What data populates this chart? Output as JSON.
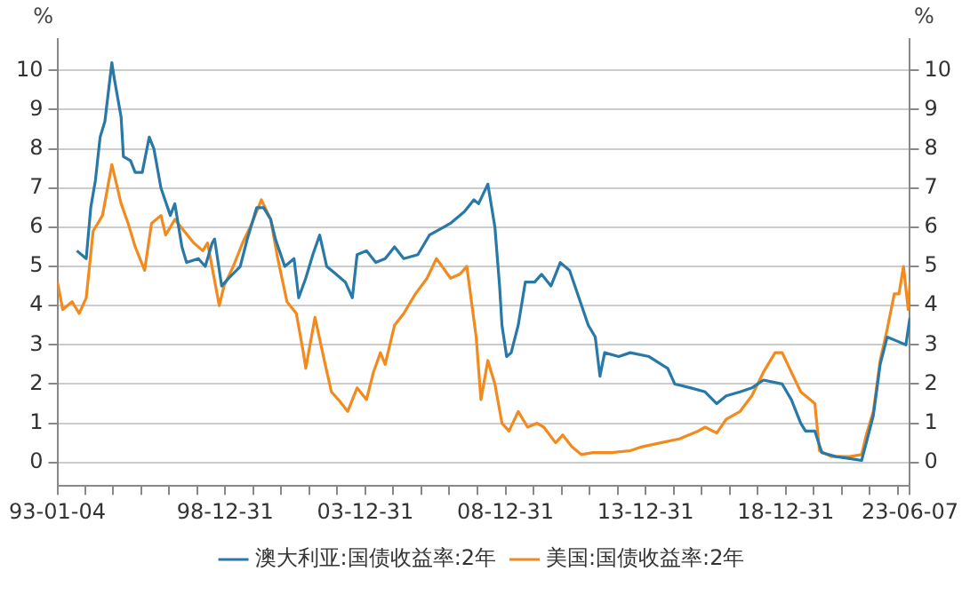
{
  "chart_data": {
    "type": "line",
    "ylabel": "%",
    "y2label": "%",
    "xlim": [
      "1993-01-04",
      "2023-06-07"
    ],
    "xticks": [
      {
        "value": "1993-01-04",
        "label": "93-01-04"
      },
      {
        "value": "1993-12-31",
        "label": null
      },
      {
        "value": "1994-12-31",
        "label": null
      },
      {
        "value": "1995-12-31",
        "label": null
      },
      {
        "value": "1996-12-31",
        "label": null
      },
      {
        "value": "1997-12-31",
        "label": null
      },
      {
        "value": "1998-12-31",
        "label": "98-12-31"
      },
      {
        "value": "1999-12-31",
        "label": null
      },
      {
        "value": "2000-12-31",
        "label": null
      },
      {
        "value": "2001-12-31",
        "label": null
      },
      {
        "value": "2002-12-31",
        "label": null
      },
      {
        "value": "2003-12-31",
        "label": "03-12-31"
      },
      {
        "value": "2004-12-31",
        "label": null
      },
      {
        "value": "2005-12-31",
        "label": null
      },
      {
        "value": "2006-12-31",
        "label": null
      },
      {
        "value": "2007-12-31",
        "label": null
      },
      {
        "value": "2008-12-31",
        "label": "08-12-31"
      },
      {
        "value": "2009-12-31",
        "label": null
      },
      {
        "value": "2010-12-31",
        "label": null
      },
      {
        "value": "2011-12-31",
        "label": null
      },
      {
        "value": "2012-12-31",
        "label": null
      },
      {
        "value": "2013-12-31",
        "label": "13-12-31"
      },
      {
        "value": "2014-12-31",
        "label": null
      },
      {
        "value": "2015-12-31",
        "label": null
      },
      {
        "value": "2016-12-31",
        "label": null
      },
      {
        "value": "2017-12-31",
        "label": null
      },
      {
        "value": "2018-12-31",
        "label": "18-12-31"
      },
      {
        "value": "2019-12-31",
        "label": null
      },
      {
        "value": "2020-12-31",
        "label": null
      },
      {
        "value": "2021-12-31",
        "label": null
      },
      {
        "value": "2022-12-31",
        "label": null
      },
      {
        "value": "2023-06-07",
        "label": "23-06-07"
      }
    ],
    "ylim": [
      -0.6,
      10.8
    ],
    "yticks": [
      0,
      1,
      2,
      3,
      4,
      5,
      6,
      7,
      8,
      9,
      10
    ],
    "y2lim": [
      -0.6,
      10.8
    ],
    "y2ticks": [
      0,
      1,
      2,
      3,
      4,
      5,
      6,
      7,
      8,
      9,
      10
    ],
    "grid": "y",
    "legend": "bottom",
    "line_style": "solid",
    "marker": "none",
    "series": [
      {
        "name": "澳大利亚:国债收益率:2年",
        "color": "#2878a8",
        "x": [
          "1993-09",
          "1994-01",
          "1994-03",
          "1994-05",
          "1994-07",
          "1994-09",
          "1994-12",
          "1995-01",
          "1995-04",
          "1995-05",
          "1995-08",
          "1995-10",
          "1996-01",
          "1996-04",
          "1996-06",
          "1996-09",
          "1997-01",
          "1997-03",
          "1997-06",
          "1997-08",
          "1998-01",
          "1998-04",
          "1998-07",
          "1998-08",
          "1998-11",
          "1999-02",
          "1999-07",
          "1999-10",
          "2000-02",
          "2000-05",
          "2000-08",
          "2000-10",
          "2001-02",
          "2001-06",
          "2001-08",
          "2001-11",
          "2002-02",
          "2002-05",
          "2002-08",
          "2002-12",
          "2003-04",
          "2003-07",
          "2003-09",
          "2004-01",
          "2004-05",
          "2004-09",
          "2005-01",
          "2005-05",
          "2005-11",
          "2006-04",
          "2007-01",
          "2007-07",
          "2007-11",
          "2008-01",
          "2008-05",
          "2008-08",
          "2008-10",
          "2008-11",
          "2009-01",
          "2009-03",
          "2009-06",
          "2009-09",
          "2010-01",
          "2010-04",
          "2010-08",
          "2010-12",
          "2011-04",
          "2011-08",
          "2011-12",
          "2012-03",
          "2012-05",
          "2012-07",
          "2013-01",
          "2013-06",
          "2014-02",
          "2014-10",
          "2015-01",
          "2015-08",
          "2016-02",
          "2016-07",
          "2016-11",
          "2017-05",
          "2017-10",
          "2018-03",
          "2018-11",
          "2019-03",
          "2019-07",
          "2019-09",
          "2020-01",
          "2020-04",
          "2020-10",
          "2021-04",
          "2021-09",
          "2021-11",
          "2022-02",
          "2022-05",
          "2022-08",
          "2022-12",
          "2023-04",
          "2023-06-07"
        ],
        "values": [
          5.4,
          5.2,
          6.5,
          7.2,
          8.3,
          8.7,
          10.2,
          9.8,
          8.8,
          7.8,
          7.7,
          7.4,
          7.4,
          8.3,
          8.0,
          7.0,
          6.3,
          6.6,
          5.5,
          5.1,
          5.2,
          5.0,
          5.6,
          5.7,
          4.5,
          4.7,
          5.0,
          5.7,
          6.5,
          6.5,
          6.2,
          5.7,
          5.0,
          5.2,
          4.2,
          4.7,
          5.3,
          5.8,
          5.0,
          4.8,
          4.6,
          4.2,
          5.3,
          5.4,
          5.1,
          5.2,
          5.5,
          5.2,
          5.3,
          5.8,
          6.1,
          6.4,
          6.7,
          6.6,
          7.1,
          6.0,
          4.5,
          3.5,
          2.7,
          2.8,
          3.5,
          4.6,
          4.6,
          4.8,
          4.5,
          5.1,
          4.9,
          4.2,
          3.5,
          3.2,
          2.2,
          2.8,
          2.7,
          2.8,
          2.7,
          2.4,
          2.0,
          1.9,
          1.8,
          1.5,
          1.7,
          1.8,
          1.9,
          2.1,
          2.0,
          1.6,
          1.0,
          0.8,
          0.8,
          0.25,
          0.15,
          0.1,
          0.05,
          0.5,
          1.2,
          2.5,
          3.2,
          3.1,
          3.0,
          3.7
        ]
      },
      {
        "name": "美国:国债收益率:2年",
        "color": "#f28a1e",
        "x": [
          "1993-01-04",
          "1993-03",
          "1993-07",
          "1993-10",
          "1994-01",
          "1994-04",
          "1994-08",
          "1994-12",
          "1995-04",
          "1995-07",
          "1995-10",
          "1996-02",
          "1996-05",
          "1996-09",
          "1996-11",
          "1997-03",
          "1997-07",
          "1997-11",
          "1998-03",
          "1998-05",
          "1998-10",
          "1998-12",
          "1999-04",
          "1999-08",
          "1999-12",
          "2000-04",
          "2000-08",
          "2000-11",
          "2001-03",
          "2001-07",
          "2001-10",
          "2001-11",
          "2002-03",
          "2002-07",
          "2002-10",
          "2003-01",
          "2003-05",
          "2003-09",
          "2004-01",
          "2004-04",
          "2004-07",
          "2004-09",
          "2005-01",
          "2005-05",
          "2005-10",
          "2006-03",
          "2006-07",
          "2007-01",
          "2007-05",
          "2007-08",
          "2007-12",
          "2008-02",
          "2008-05",
          "2008-08",
          "2008-11",
          "2009-02",
          "2009-06",
          "2009-10",
          "2010-02",
          "2010-05",
          "2010-10",
          "2011-01",
          "2011-05",
          "2011-09",
          "2012-02",
          "2012-10",
          "2013-06",
          "2013-11",
          "2014-07",
          "2015-03",
          "2015-11",
          "2016-02",
          "2016-07",
          "2016-11",
          "2017-05",
          "2017-10",
          "2018-03",
          "2018-08",
          "2018-11",
          "2019-03",
          "2019-07",
          "2019-11",
          "2020-01",
          "2020-03",
          "2020-08",
          "2021-04",
          "2021-09",
          "2021-11",
          "2022-02",
          "2022-05",
          "2022-08",
          "2022-11",
          "2023-01",
          "2023-03",
          "2023-05",
          "2023-06-07"
        ],
        "values": [
          4.6,
          3.9,
          4.1,
          3.8,
          4.2,
          5.9,
          6.3,
          7.6,
          6.6,
          6.1,
          5.5,
          4.9,
          6.1,
          6.3,
          5.8,
          6.2,
          5.9,
          5.6,
          5.4,
          5.6,
          4.0,
          4.5,
          5.0,
          5.6,
          6.1,
          6.7,
          6.2,
          5.2,
          4.1,
          3.8,
          2.8,
          2.4,
          3.7,
          2.6,
          1.8,
          1.6,
          1.3,
          1.9,
          1.6,
          2.3,
          2.8,
          2.5,
          3.5,
          3.8,
          4.3,
          4.7,
          5.2,
          4.7,
          4.8,
          5.0,
          3.2,
          1.6,
          2.6,
          2.0,
          1.0,
          0.8,
          1.3,
          0.9,
          1.0,
          0.9,
          0.5,
          0.7,
          0.4,
          0.2,
          0.25,
          0.25,
          0.3,
          0.4,
          0.5,
          0.6,
          0.8,
          0.9,
          0.75,
          1.1,
          1.3,
          1.7,
          2.3,
          2.8,
          2.8,
          2.3,
          1.8,
          1.6,
          1.5,
          0.3,
          0.15,
          0.15,
          0.2,
          0.7,
          1.3,
          2.6,
          3.4,
          4.3,
          4.3,
          5.0,
          3.9,
          4.6
        ]
      }
    ]
  }
}
